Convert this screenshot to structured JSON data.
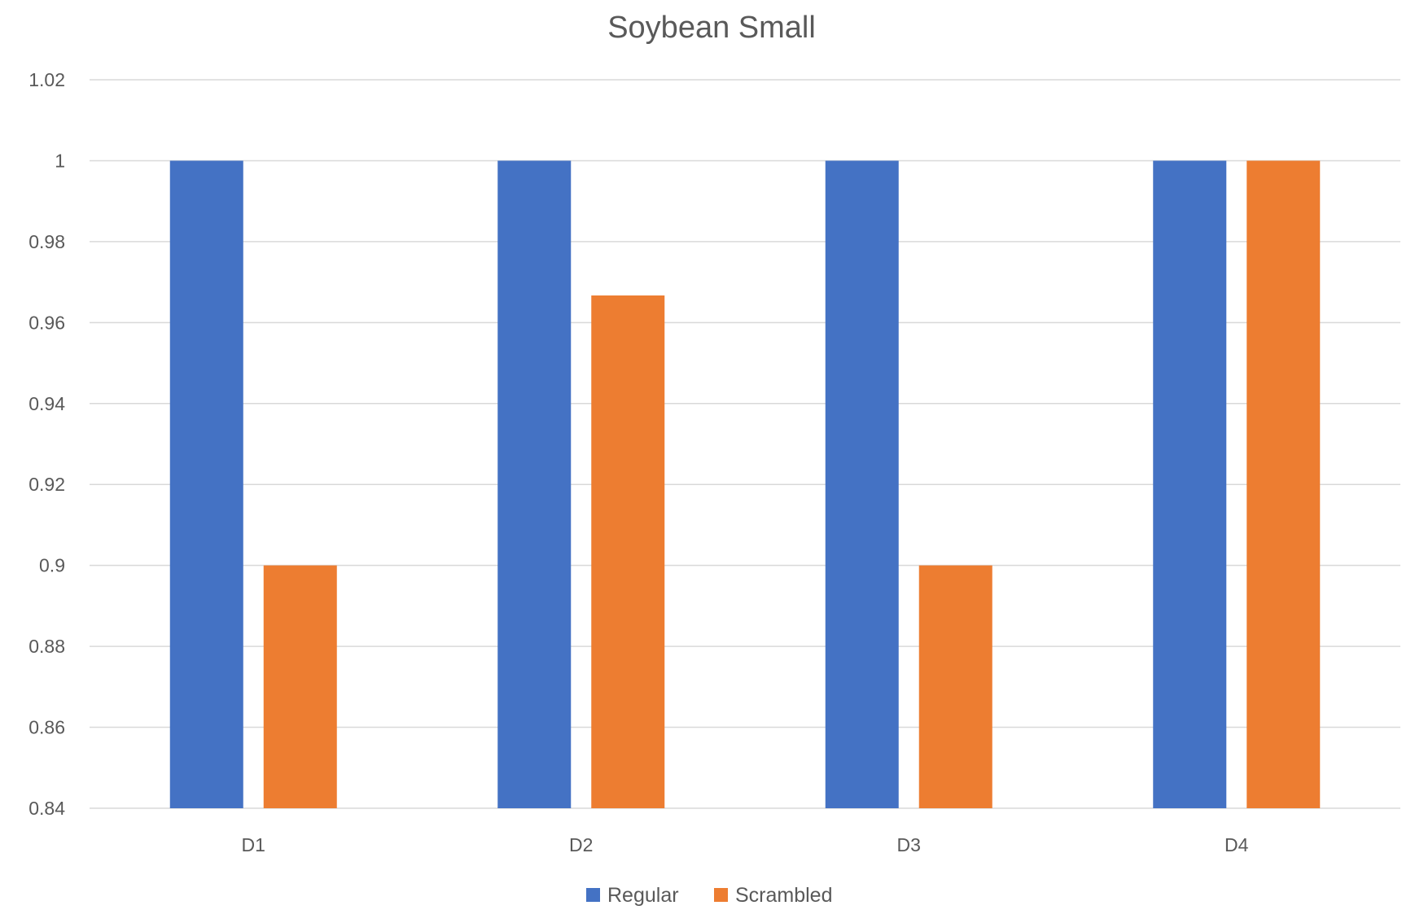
{
  "chart_data": {
    "type": "bar",
    "title": "Soybean Small",
    "xlabel": "",
    "ylabel": "",
    "categories": [
      "D1",
      "D2",
      "D3",
      "D4"
    ],
    "series": [
      {
        "name": "Regular",
        "color": "#4472C4",
        "values": [
          1,
          1,
          1,
          1
        ]
      },
      {
        "name": "Scrambled",
        "color": "#ED7D31",
        "values": [
          0.9,
          0.9667,
          0.9,
          1
        ]
      }
    ],
    "ylim": [
      0.84,
      1.02
    ],
    "yticks": [
      "0.84",
      "0.86",
      "0.88",
      "0.9",
      "0.92",
      "0.94",
      "0.96",
      "0.98",
      "1",
      "1.02"
    ],
    "grid": true,
    "legend_position": "bottom"
  }
}
